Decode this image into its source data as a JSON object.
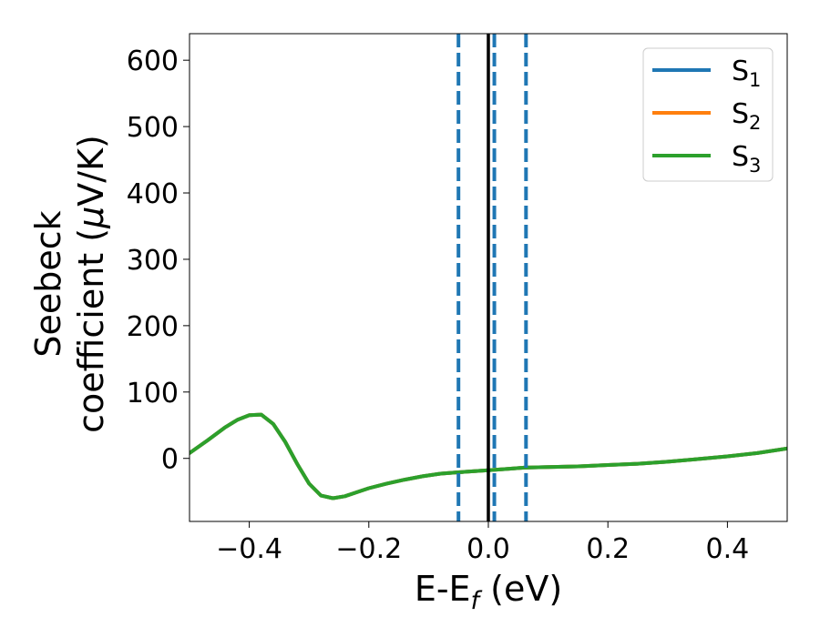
{
  "chart_data": {
    "type": "line",
    "xlabel": "E-E",
    "xlabel_sub": "f",
    "xlabel_unit": " (eV)",
    "ylabel_line1": "Seebeck",
    "ylabel_line2": "coefficient  (",
    "ylabel_mu": "μ",
    "ylabel_unit": "V/K)",
    "xlim": [
      -0.5,
      0.5
    ],
    "ylim": [
      -95,
      640
    ],
    "xticks": [
      {
        "value": -0.4,
        "label": "−0.4"
      },
      {
        "value": -0.2,
        "label": "−0.2"
      },
      {
        "value": 0.0,
        "label": "0.0"
      },
      {
        "value": 0.2,
        "label": "0.2"
      },
      {
        "value": 0.4,
        "label": "0.4"
      }
    ],
    "yticks": [
      {
        "value": 0,
        "label": "0"
      },
      {
        "value": 100,
        "label": "100"
      },
      {
        "value": 200,
        "label": "200"
      },
      {
        "value": 300,
        "label": "300"
      },
      {
        "value": 400,
        "label": "400"
      },
      {
        "value": 500,
        "label": "500"
      },
      {
        "value": 600,
        "label": "600"
      }
    ],
    "grid": false,
    "legend_position": "top-right",
    "x": [
      -0.5,
      -0.47,
      -0.44,
      -0.42,
      -0.4,
      -0.38,
      -0.36,
      -0.34,
      -0.32,
      -0.3,
      -0.28,
      -0.26,
      -0.24,
      -0.22,
      -0.2,
      -0.17,
      -0.14,
      -0.11,
      -0.08,
      -0.05,
      -0.02,
      0.0,
      0.03,
      0.06,
      0.1,
      0.15,
      0.2,
      0.25,
      0.3,
      0.35,
      0.4,
      0.45,
      0.5
    ],
    "series": [
      {
        "name": "S",
        "sub": "1",
        "color": "#1f77b4",
        "values": [
          8,
          27,
          47,
          58,
          65,
          66,
          52,
          25,
          -8,
          -38,
          -56,
          -60,
          -57,
          -51,
          -45,
          -38,
          -32,
          -27,
          -23,
          -21,
          -19,
          -18,
          -16,
          -14,
          -13,
          -12,
          -10,
          -8,
          -5,
          -1,
          3,
          8,
          15
        ]
      },
      {
        "name": "S",
        "sub": "2",
        "color": "#ff7f0e",
        "values": [
          8,
          27,
          47,
          58,
          65,
          66,
          52,
          25,
          -8,
          -38,
          -56,
          -60,
          -57,
          -51,
          -45,
          -38,
          -32,
          -27,
          -23,
          -21,
          -19,
          -18,
          -16,
          -14,
          -13,
          -12,
          -10,
          -8,
          -5,
          -1,
          3,
          8,
          15
        ]
      },
      {
        "name": "S",
        "sub": "3",
        "color": "#2ca02c",
        "values": [
          8,
          27,
          47,
          58,
          65,
          66,
          52,
          25,
          -8,
          -38,
          -56,
          -60,
          -57,
          -51,
          -45,
          -38,
          -32,
          -27,
          -23,
          -21,
          -19,
          -18,
          -16,
          -14,
          -13,
          -12,
          -10,
          -8,
          -5,
          -1,
          3,
          8,
          15
        ]
      }
    ],
    "vlines": [
      {
        "x": -0.05,
        "style": "dashed",
        "color": "#1f77b4"
      },
      {
        "x": 0.01,
        "style": "dashed",
        "color": "#1f77b4"
      },
      {
        "x": 0.063,
        "style": "dashed",
        "color": "#1f77b4"
      },
      {
        "x": 0.0,
        "style": "solid",
        "color": "#000000"
      }
    ]
  }
}
